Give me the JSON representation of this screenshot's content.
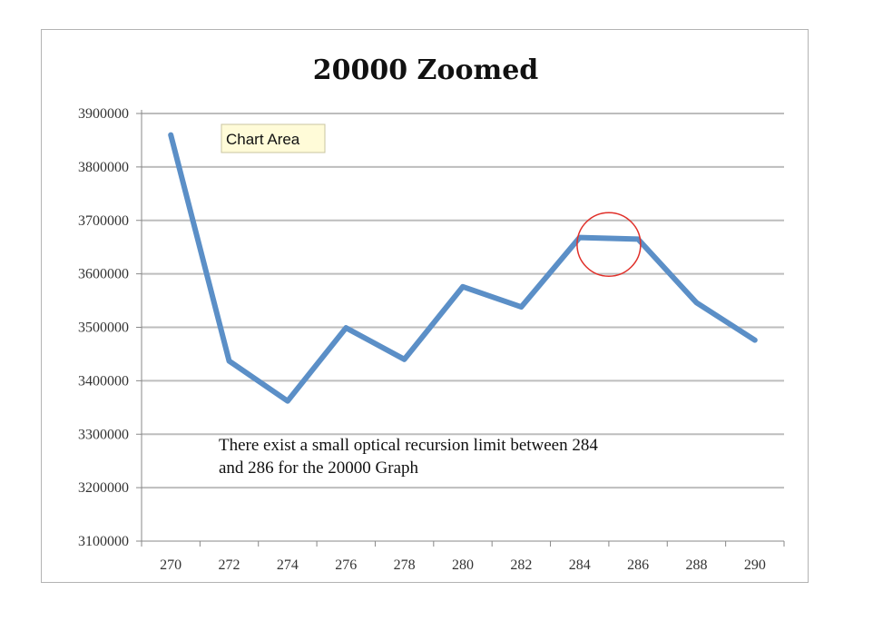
{
  "chart_data": {
    "type": "line",
    "title": "20000 Zoomed",
    "xlabel": "",
    "ylabel": "",
    "x": [
      270,
      272,
      274,
      276,
      278,
      280,
      282,
      284,
      286,
      288,
      290
    ],
    "series": [
      {
        "values": [
          3860000,
          3437000,
          3362000,
          3499000,
          3440000,
          3576000,
          3538000,
          3668000,
          3665000,
          3546000,
          3476000
        ],
        "color": "#5b8fc7"
      }
    ],
    "x_ticks": [
      "270",
      "272",
      "274",
      "276",
      "278",
      "280",
      "282",
      "284",
      "286",
      "288",
      "290"
    ],
    "y_ticks": [
      "3100000",
      "3200000",
      "3300000",
      "3400000",
      "3500000",
      "3600000",
      "3700000",
      "3800000",
      "3900000"
    ],
    "ylim": [
      3100000,
      3900000
    ],
    "grid": true,
    "legend": "none",
    "annotation_text": [
      "There exist a small optical recursion limit between 284",
      "and 286 for the 20000 Graph"
    ],
    "highlight": {
      "x": 285,
      "y": 3655000,
      "color": "#e0302a"
    },
    "tooltip": "Chart Area"
  }
}
